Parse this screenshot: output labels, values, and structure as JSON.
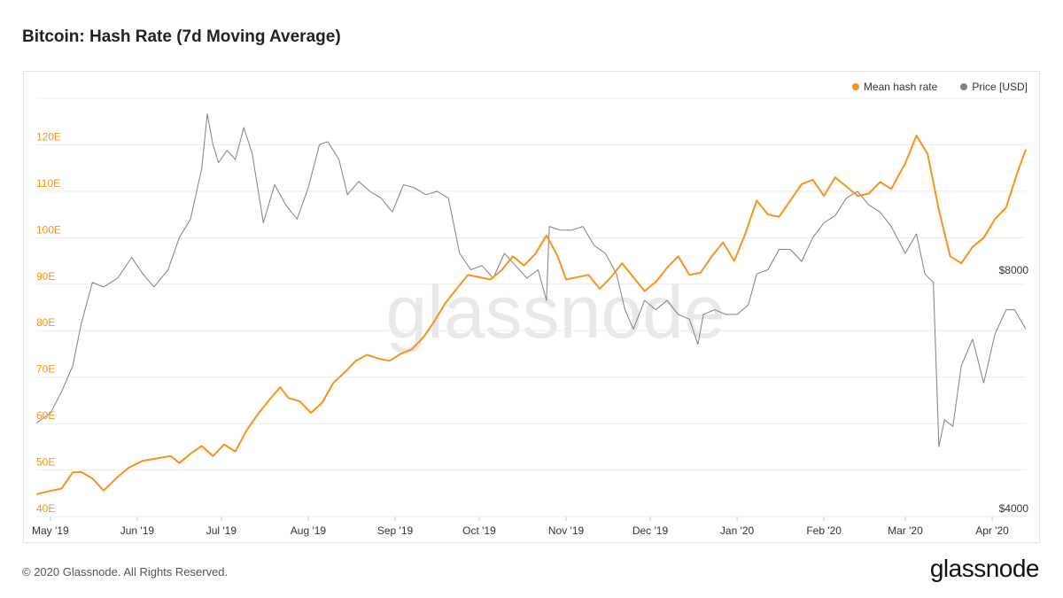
{
  "title": "Bitcoin: Hash Rate (7d Moving Average)",
  "footer": {
    "copyright": "© 2020 Glassnode. All Rights Reserved.",
    "logo": "glassnode"
  },
  "watermark": "glassnode",
  "chart_data": {
    "type": "line",
    "title": "Bitcoin: Hash Rate (7d Moving Average)",
    "grid": true,
    "legend_position": "top-right",
    "x_range": [
      "2019-04-26",
      "2020-04-13"
    ],
    "x_ticks": [
      {
        "date": "2019-05-01",
        "label": "May '19"
      },
      {
        "date": "2019-06-01",
        "label": "Jun '19"
      },
      {
        "date": "2019-07-01",
        "label": "Jul '19"
      },
      {
        "date": "2019-08-01",
        "label": "Aug '19"
      },
      {
        "date": "2019-09-01",
        "label": "Sep '19"
      },
      {
        "date": "2019-10-01",
        "label": "Oct '19"
      },
      {
        "date": "2019-11-01",
        "label": "Nov '19"
      },
      {
        "date": "2019-12-01",
        "label": "Dec '19"
      },
      {
        "date": "2020-01-01",
        "label": "Jan '20"
      },
      {
        "date": "2020-02-01",
        "label": "Feb '20"
      },
      {
        "date": "2020-03-01",
        "label": "Mar '20"
      },
      {
        "date": "2020-04-01",
        "label": "Apr '20"
      }
    ],
    "y_left": {
      "range": [
        40,
        130
      ],
      "ticks": [
        {
          "value": 40,
          "label": "40E"
        },
        {
          "value": 50,
          "label": "50E"
        },
        {
          "value": 60,
          "label": "60E"
        },
        {
          "value": 70,
          "label": "70E"
        },
        {
          "value": 80,
          "label": "80E"
        },
        {
          "value": 90,
          "label": "90E"
        },
        {
          "value": 100,
          "label": "100E"
        },
        {
          "value": 110,
          "label": "110E"
        },
        {
          "value": 120,
          "label": "120E"
        }
      ]
    },
    "y_right": {
      "scale": "log",
      "range": [
        4000,
        13500
      ],
      "ticks": [
        {
          "value": 4000,
          "label": "$4000"
        },
        {
          "value": 8000,
          "label": "$8000"
        }
      ]
    },
    "series": [
      {
        "name": "Mean hash rate",
        "axis": "left",
        "color": "#f7931a",
        "points": [
          [
            "2019-04-26",
            44.8
          ],
          [
            "2019-05-01",
            45.5
          ],
          [
            "2019-05-05",
            46.0
          ],
          [
            "2019-05-09",
            49.5
          ],
          [
            "2019-05-12",
            49.6
          ],
          [
            "2019-05-16",
            48.2
          ],
          [
            "2019-05-20",
            45.6
          ],
          [
            "2019-05-25",
            48.5
          ],
          [
            "2019-05-29",
            50.5
          ],
          [
            "2019-06-03",
            52.0
          ],
          [
            "2019-06-08",
            52.5
          ],
          [
            "2019-06-13",
            53.0
          ],
          [
            "2019-06-16",
            51.5
          ],
          [
            "2019-06-20",
            53.5
          ],
          [
            "2019-06-24",
            55.2
          ],
          [
            "2019-06-28",
            53.0
          ],
          [
            "2019-07-02",
            55.5
          ],
          [
            "2019-07-06",
            54.0
          ],
          [
            "2019-07-10",
            58.5
          ],
          [
            "2019-07-14",
            62.0
          ],
          [
            "2019-07-18",
            65.0
          ],
          [
            "2019-07-22",
            67.8
          ],
          [
            "2019-07-25",
            65.5
          ],
          [
            "2019-07-29",
            64.8
          ],
          [
            "2019-08-02",
            62.3
          ],
          [
            "2019-08-06",
            64.5
          ],
          [
            "2019-08-10",
            68.8
          ],
          [
            "2019-08-14",
            71.0
          ],
          [
            "2019-08-18",
            73.5
          ],
          [
            "2019-08-22",
            74.8
          ],
          [
            "2019-08-26",
            74.0
          ],
          [
            "2019-08-30",
            73.5
          ],
          [
            "2019-09-03",
            75.0
          ],
          [
            "2019-09-07",
            76.0
          ],
          [
            "2019-09-11",
            78.5
          ],
          [
            "2019-09-15",
            82.0
          ],
          [
            "2019-09-19",
            86.0
          ],
          [
            "2019-09-23",
            89.0
          ],
          [
            "2019-09-27",
            92.0
          ],
          [
            "2019-10-01",
            91.5
          ],
          [
            "2019-10-05",
            91.0
          ],
          [
            "2019-10-09",
            93.0
          ],
          [
            "2019-10-13",
            96.0
          ],
          [
            "2019-10-17",
            94.0
          ],
          [
            "2019-10-21",
            96.5
          ],
          [
            "2019-10-25",
            100.5
          ],
          [
            "2019-10-29",
            96.0
          ],
          [
            "2019-11-01",
            91.0
          ],
          [
            "2019-11-05",
            91.5
          ],
          [
            "2019-11-09",
            92.0
          ],
          [
            "2019-11-13",
            89.0
          ],
          [
            "2019-11-17",
            91.5
          ],
          [
            "2019-11-21",
            94.5
          ],
          [
            "2019-11-25",
            91.5
          ],
          [
            "2019-11-29",
            88.5
          ],
          [
            "2019-12-03",
            90.5
          ],
          [
            "2019-12-07",
            93.5
          ],
          [
            "2019-12-11",
            96.0
          ],
          [
            "2019-12-15",
            92.0
          ],
          [
            "2019-12-19",
            92.5
          ],
          [
            "2019-12-23",
            96.0
          ],
          [
            "2019-12-27",
            99.0
          ],
          [
            "2019-12-31",
            95.0
          ],
          [
            "2020-01-04",
            101.0
          ],
          [
            "2020-01-08",
            108.0
          ],
          [
            "2020-01-12",
            105.0
          ],
          [
            "2020-01-16",
            104.5
          ],
          [
            "2020-01-20",
            108.0
          ],
          [
            "2020-01-24",
            111.5
          ],
          [
            "2020-01-28",
            112.5
          ],
          [
            "2020-02-01",
            109.0
          ],
          [
            "2020-02-05",
            113.0
          ],
          [
            "2020-02-09",
            111.0
          ],
          [
            "2020-02-13",
            109.0
          ],
          [
            "2020-02-17",
            109.5
          ],
          [
            "2020-02-21",
            112.0
          ],
          [
            "2020-02-25",
            110.5
          ],
          [
            "2020-03-01",
            116.0
          ],
          [
            "2020-03-05",
            122.0
          ],
          [
            "2020-03-09",
            118.0
          ],
          [
            "2020-03-13",
            106.0
          ],
          [
            "2020-03-17",
            96.0
          ],
          [
            "2020-03-21",
            94.5
          ],
          [
            "2020-03-25",
            98.0
          ],
          [
            "2020-03-29",
            100.0
          ],
          [
            "2020-04-02",
            104.0
          ],
          [
            "2020-04-06",
            106.5
          ],
          [
            "2020-04-10",
            114.0
          ],
          [
            "2020-04-13",
            119.0
          ]
        ]
      },
      {
        "name": "Price [USD]",
        "axis": "right",
        "color": "#808080",
        "points": [
          [
            "2019-04-26",
            5250
          ],
          [
            "2019-05-01",
            5400
          ],
          [
            "2019-05-05",
            5750
          ],
          [
            "2019-05-09",
            6200
          ],
          [
            "2019-05-12",
            7000
          ],
          [
            "2019-05-16",
            7900
          ],
          [
            "2019-05-20",
            7800
          ],
          [
            "2019-05-25",
            8000
          ],
          [
            "2019-05-30",
            8500
          ],
          [
            "2019-06-03",
            8100
          ],
          [
            "2019-06-07",
            7800
          ],
          [
            "2019-06-12",
            8200
          ],
          [
            "2019-06-16",
            9000
          ],
          [
            "2019-06-20",
            9500
          ],
          [
            "2019-06-24",
            11000
          ],
          [
            "2019-06-26",
            12900
          ],
          [
            "2019-06-28",
            11800
          ],
          [
            "2019-06-30",
            11200
          ],
          [
            "2019-07-03",
            11600
          ],
          [
            "2019-07-06",
            11300
          ],
          [
            "2019-07-09",
            12400
          ],
          [
            "2019-07-12",
            11500
          ],
          [
            "2019-07-16",
            9400
          ],
          [
            "2019-07-20",
            10500
          ],
          [
            "2019-07-24",
            9900
          ],
          [
            "2019-07-28",
            9500
          ],
          [
            "2019-08-01",
            10400
          ],
          [
            "2019-08-05",
            11800
          ],
          [
            "2019-08-08",
            11900
          ],
          [
            "2019-08-12",
            11300
          ],
          [
            "2019-08-15",
            10200
          ],
          [
            "2019-08-19",
            10600
          ],
          [
            "2019-08-23",
            10300
          ],
          [
            "2019-08-27",
            10100
          ],
          [
            "2019-08-31",
            9700
          ],
          [
            "2019-09-04",
            10500
          ],
          [
            "2019-09-08",
            10400
          ],
          [
            "2019-09-12",
            10200
          ],
          [
            "2019-09-16",
            10300
          ],
          [
            "2019-09-20",
            10100
          ],
          [
            "2019-09-24",
            8600
          ],
          [
            "2019-09-28",
            8200
          ],
          [
            "2019-10-02",
            8300
          ],
          [
            "2019-10-06",
            8000
          ],
          [
            "2019-10-10",
            8600
          ],
          [
            "2019-10-14",
            8300
          ],
          [
            "2019-10-18",
            8000
          ],
          [
            "2019-10-22",
            8200
          ],
          [
            "2019-10-25",
            7500
          ],
          [
            "2019-10-26",
            9300
          ],
          [
            "2019-10-30",
            9200
          ],
          [
            "2019-11-03",
            9200
          ],
          [
            "2019-11-07",
            9300
          ],
          [
            "2019-11-11",
            8800
          ],
          [
            "2019-11-15",
            8600
          ],
          [
            "2019-11-19",
            8100
          ],
          [
            "2019-11-22",
            7300
          ],
          [
            "2019-11-25",
            6900
          ],
          [
            "2019-11-29",
            7500
          ],
          [
            "2019-12-03",
            7300
          ],
          [
            "2019-12-07",
            7500
          ],
          [
            "2019-12-11",
            7200
          ],
          [
            "2019-12-15",
            7100
          ],
          [
            "2019-12-18",
            6600
          ],
          [
            "2019-12-20",
            7200
          ],
          [
            "2019-12-24",
            7300
          ],
          [
            "2019-12-28",
            7200
          ],
          [
            "2020-01-01",
            7200
          ],
          [
            "2020-01-05",
            7400
          ],
          [
            "2020-01-08",
            8100
          ],
          [
            "2020-01-12",
            8200
          ],
          [
            "2020-01-16",
            8700
          ],
          [
            "2020-01-20",
            8700
          ],
          [
            "2020-01-24",
            8400
          ],
          [
            "2020-01-28",
            9000
          ],
          [
            "2020-02-01",
            9400
          ],
          [
            "2020-02-05",
            9600
          ],
          [
            "2020-02-09",
            10100
          ],
          [
            "2020-02-13",
            10300
          ],
          [
            "2020-02-17",
            9900
          ],
          [
            "2020-02-21",
            9700
          ],
          [
            "2020-02-25",
            9300
          ],
          [
            "2020-03-01",
            8600
          ],
          [
            "2020-03-05",
            9100
          ],
          [
            "2020-03-08",
            8100
          ],
          [
            "2020-03-11",
            7900
          ],
          [
            "2020-03-13",
            4900
          ],
          [
            "2020-03-15",
            5300
          ],
          [
            "2020-03-18",
            5200
          ],
          [
            "2020-03-21",
            6200
          ],
          [
            "2020-03-25",
            6700
          ],
          [
            "2020-03-29",
            5900
          ],
          [
            "2020-04-02",
            6800
          ],
          [
            "2020-04-06",
            7300
          ],
          [
            "2020-04-09",
            7300
          ],
          [
            "2020-04-13",
            6900
          ]
        ]
      }
    ]
  }
}
